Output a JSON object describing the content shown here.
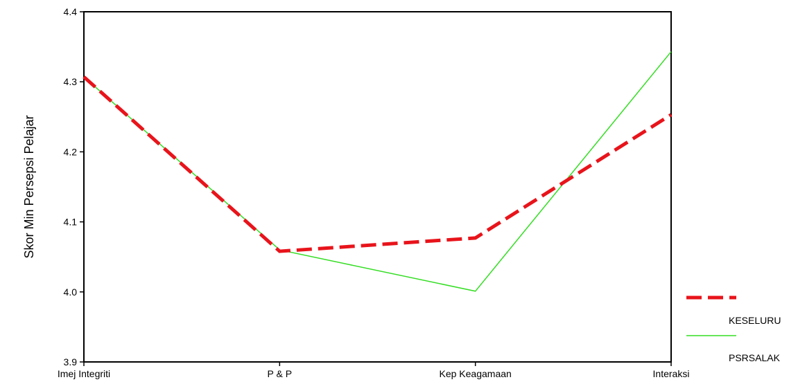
{
  "chart_data": {
    "type": "line",
    "categories": [
      "Imej Integriti",
      "P & P",
      "Kep Keagamaan",
      "Interaksi"
    ],
    "ylabel": "Skor Min Persepsi Pelajar",
    "xlabel": "",
    "ylim": [
      3.9,
      4.4
    ],
    "yticks": [
      "3.9",
      "4.0",
      "4.1",
      "4.2",
      "4.3",
      "4.4"
    ],
    "grid": false,
    "legend_position": "bottom-right",
    "series": [
      {
        "name": "KESELURU",
        "values": [
          4.307,
          4.058,
          4.077,
          4.253
        ],
        "color": "#e8141b",
        "style": "dashed"
      },
      {
        "name": "PSRSALAK",
        "values": [
          4.307,
          4.06,
          4.001,
          4.343
        ],
        "color": "#33dd22",
        "style": "solid"
      }
    ]
  }
}
